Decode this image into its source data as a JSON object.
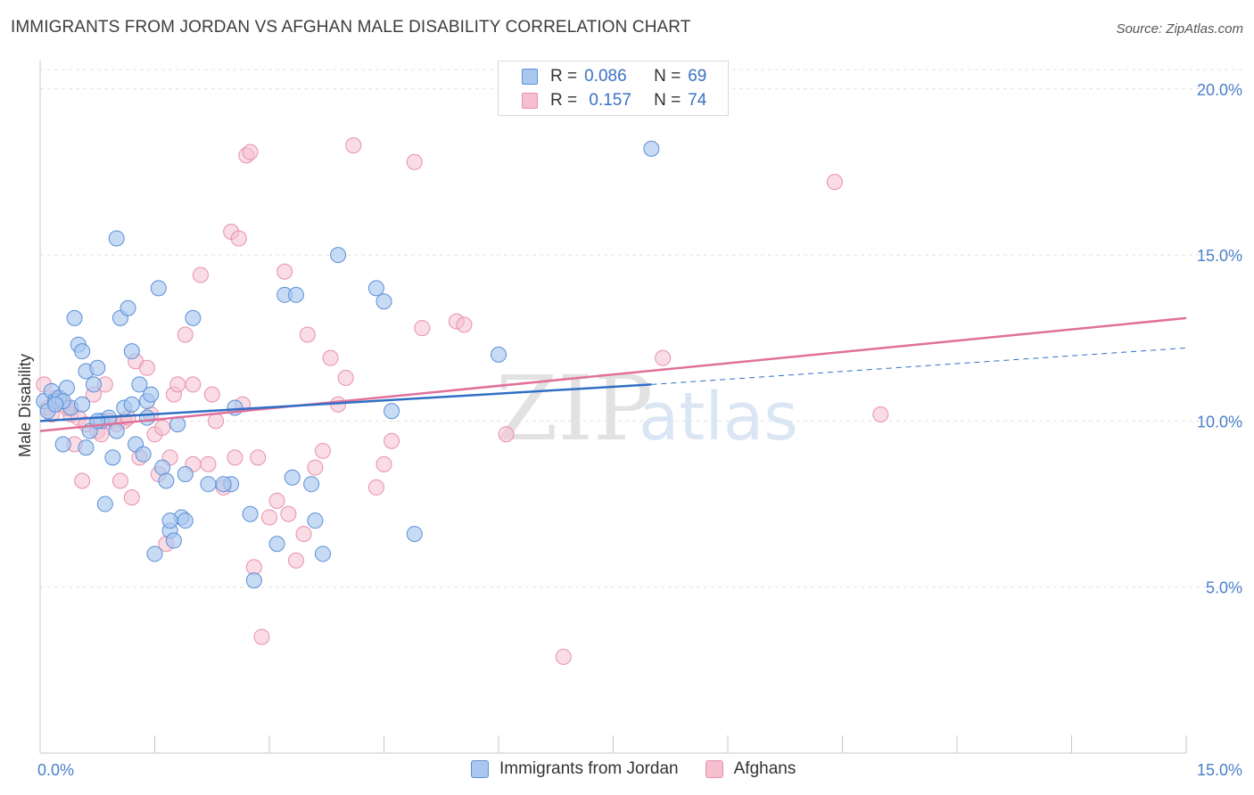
{
  "title": "IMMIGRANTS FROM JORDAN VS AFGHAN MALE DISABILITY CORRELATION CHART",
  "source": "Source: ZipAtlas.com",
  "watermark": {
    "zip": "ZIP",
    "atlas": "atlas"
  },
  "legend": {
    "rows": [
      {
        "r_label": "R =",
        "r_value": "0.086",
        "n_label": "N =",
        "n_value": "69"
      },
      {
        "r_label": "R =",
        "r_value": " 0.157",
        "n_label": "N =",
        "n_value": "74"
      }
    ]
  },
  "colors": {
    "jordan_fill": "#a9c7ef",
    "jordan_stroke": "#5b8fd6",
    "jordan_line": "#2f6fc4",
    "afghan_fill": "#f5bfd0",
    "afghan_stroke": "#e890ad",
    "afghan_line": "#e0709a",
    "tick_label": "#4a7fc9",
    "grid": "#e3e3e3"
  },
  "chart_data": {
    "type": "scatter",
    "title": "IMMIGRANTS FROM JORDAN VS AFGHAN MALE DISABILITY CORRELATION CHART",
    "xlabel": "",
    "ylabel": "Male Disability",
    "xlim": [
      0,
      15
    ],
    "ylim": [
      0,
      20.8
    ],
    "x_tick_labels": [
      "0.0%",
      "15.0%"
    ],
    "y_ticks": [
      5,
      10,
      15,
      20
    ],
    "y_tick_labels": [
      "5.0%",
      "10.0%",
      "15.0%",
      "20.0%"
    ],
    "grid": "horizontal dashed",
    "legend_position": "bottom-center",
    "series": [
      {
        "name": "Immigrants from Jordan",
        "R": 0.086,
        "N": 69,
        "trend": {
          "x0": 0,
          "y0": 10.0,
          "x1": 8.0,
          "y1": 11.1,
          "dashed_to_x": 15,
          "dashed_to_y": 12.2
        },
        "points": [
          [
            0.05,
            10.6
          ],
          [
            0.1,
            10.3
          ],
          [
            0.15,
            10.9
          ],
          [
            0.2,
            10.6
          ],
          [
            0.25,
            10.7
          ],
          [
            0.3,
            9.3
          ],
          [
            0.35,
            11.0
          ],
          [
            0.4,
            10.4
          ],
          [
            0.45,
            13.1
          ],
          [
            0.5,
            12.3
          ],
          [
            0.55,
            12.1
          ],
          [
            0.6,
            11.5
          ],
          [
            0.65,
            9.7
          ],
          [
            0.7,
            11.1
          ],
          [
            0.75,
            11.6
          ],
          [
            0.8,
            10.0
          ],
          [
            0.85,
            7.5
          ],
          [
            0.9,
            10.1
          ],
          [
            0.95,
            8.9
          ],
          [
            1.0,
            15.5
          ],
          [
            1.05,
            13.1
          ],
          [
            1.1,
            10.4
          ],
          [
            1.15,
            13.4
          ],
          [
            1.2,
            12.1
          ],
          [
            1.25,
            9.3
          ],
          [
            1.3,
            11.1
          ],
          [
            1.35,
            9.0
          ],
          [
            1.4,
            10.6
          ],
          [
            1.45,
            10.8
          ],
          [
            1.5,
            6.0
          ],
          [
            1.55,
            14.0
          ],
          [
            1.6,
            8.6
          ],
          [
            1.65,
            8.2
          ],
          [
            1.7,
            6.7
          ],
          [
            1.75,
            6.4
          ],
          [
            1.8,
            9.9
          ],
          [
            1.85,
            7.1
          ],
          [
            1.9,
            8.4
          ],
          [
            2.0,
            13.1
          ],
          [
            2.2,
            8.1
          ],
          [
            2.5,
            8.1
          ],
          [
            2.55,
            10.4
          ],
          [
            2.75,
            7.2
          ],
          [
            2.8,
            5.2
          ],
          [
            3.1,
            6.3
          ],
          [
            3.2,
            13.8
          ],
          [
            3.35,
            13.8
          ],
          [
            3.55,
            8.1
          ],
          [
            3.6,
            7.0
          ],
          [
            3.7,
            6.0
          ],
          [
            3.9,
            15.0
          ],
          [
            4.4,
            14.0
          ],
          [
            4.5,
            13.6
          ],
          [
            4.6,
            10.3
          ],
          [
            4.9,
            6.6
          ],
          [
            6.0,
            12.0
          ],
          [
            8.0,
            18.2
          ],
          [
            1.2,
            10.5
          ],
          [
            0.6,
            9.2
          ],
          [
            0.3,
            10.6
          ],
          [
            1.0,
            9.7
          ],
          [
            1.9,
            7.0
          ],
          [
            0.2,
            10.5
          ],
          [
            2.4,
            8.1
          ],
          [
            1.4,
            10.1
          ],
          [
            0.75,
            10.0
          ],
          [
            3.3,
            8.3
          ],
          [
            1.7,
            7.0
          ],
          [
            0.55,
            10.5
          ]
        ]
      },
      {
        "name": "Afghans",
        "R": 0.157,
        "N": 74,
        "trend": {
          "x0": 0,
          "y0": 9.7,
          "x1": 15,
          "y1": 13.1
        },
        "points": [
          [
            0.05,
            11.1
          ],
          [
            0.1,
            10.4
          ],
          [
            0.15,
            10.2
          ],
          [
            0.2,
            10.7
          ],
          [
            0.3,
            10.5
          ],
          [
            0.4,
            10.2
          ],
          [
            0.45,
            9.3
          ],
          [
            0.5,
            10.1
          ],
          [
            0.55,
            8.2
          ],
          [
            0.6,
            9.9
          ],
          [
            0.7,
            10.8
          ],
          [
            0.75,
            9.7
          ],
          [
            0.8,
            9.6
          ],
          [
            0.85,
            11.1
          ],
          [
            0.9,
            10.0
          ],
          [
            1.0,
            9.9
          ],
          [
            1.05,
            8.2
          ],
          [
            1.1,
            10.0
          ],
          [
            1.2,
            7.7
          ],
          [
            1.25,
            11.8
          ],
          [
            1.3,
            8.9
          ],
          [
            1.4,
            11.6
          ],
          [
            1.45,
            10.2
          ],
          [
            1.5,
            9.6
          ],
          [
            1.55,
            8.4
          ],
          [
            1.6,
            9.8
          ],
          [
            1.65,
            6.3
          ],
          [
            1.7,
            8.9
          ],
          [
            1.75,
            10.8
          ],
          [
            1.8,
            11.1
          ],
          [
            1.9,
            12.6
          ],
          [
            2.0,
            8.7
          ],
          [
            2.1,
            14.4
          ],
          [
            2.2,
            8.7
          ],
          [
            2.25,
            10.8
          ],
          [
            2.3,
            10.0
          ],
          [
            2.4,
            8.0
          ],
          [
            2.5,
            15.7
          ],
          [
            2.55,
            8.9
          ],
          [
            2.6,
            15.5
          ],
          [
            2.65,
            10.5
          ],
          [
            2.7,
            18.0
          ],
          [
            2.75,
            18.1
          ],
          [
            2.8,
            5.6
          ],
          [
            2.85,
            8.9
          ],
          [
            2.9,
            3.5
          ],
          [
            3.0,
            7.1
          ],
          [
            3.1,
            7.6
          ],
          [
            3.2,
            14.5
          ],
          [
            3.25,
            7.2
          ],
          [
            3.35,
            5.8
          ],
          [
            3.45,
            6.6
          ],
          [
            3.5,
            12.6
          ],
          [
            3.6,
            8.6
          ],
          [
            3.7,
            9.1
          ],
          [
            3.8,
            11.9
          ],
          [
            3.9,
            10.5
          ],
          [
            4.0,
            11.3
          ],
          [
            4.1,
            18.3
          ],
          [
            4.4,
            8.0
          ],
          [
            4.5,
            8.7
          ],
          [
            4.6,
            9.4
          ],
          [
            4.9,
            17.8
          ],
          [
            5.0,
            12.8
          ],
          [
            5.45,
            13.0
          ],
          [
            5.55,
            12.9
          ],
          [
            6.1,
            9.6
          ],
          [
            6.85,
            2.9
          ],
          [
            8.15,
            11.9
          ],
          [
            10.4,
            17.2
          ],
          [
            11.0,
            10.2
          ],
          [
            2.0,
            11.1
          ],
          [
            0.35,
            10.4
          ],
          [
            1.15,
            10.1
          ]
        ]
      }
    ]
  },
  "bottom_legend": [
    {
      "label": "Immigrants from Jordan"
    },
    {
      "label": "Afghans"
    }
  ]
}
